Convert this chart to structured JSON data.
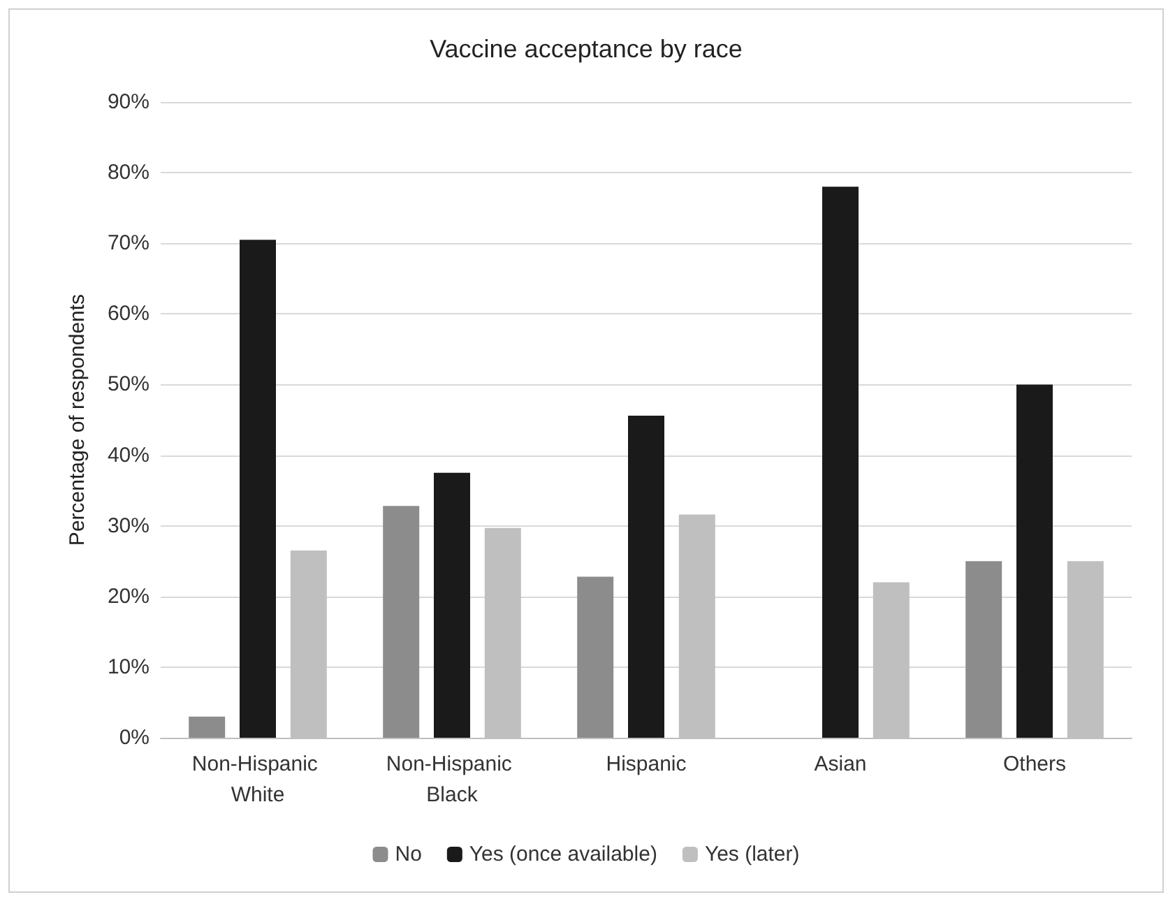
{
  "chart_data": {
    "type": "bar",
    "title": "Vaccine acceptance by race",
    "ylabel": "Percentage of respondents",
    "categories": [
      "Non-Hispanic White",
      "Non-Hispanic Black",
      "Hispanic",
      "Asian",
      "Others"
    ],
    "series": [
      {
        "name": "No",
        "color": "#8c8c8c",
        "values": [
          3,
          32.8,
          22.8,
          0,
          25
        ]
      },
      {
        "name": "Yes (once available)",
        "color": "#1a1a1a",
        "values": [
          70.5,
          37.5,
          45.6,
          78,
          50
        ]
      },
      {
        "name": "Yes (later)",
        "color": "#bfbfbf",
        "values": [
          26.5,
          29.7,
          31.6,
          22,
          25
        ]
      }
    ],
    "ylim": [
      0,
      90
    ],
    "yticks": [
      {
        "value": 0,
        "label": "0%"
      },
      {
        "value": 10,
        "label": "10%"
      },
      {
        "value": 20,
        "label": "20%"
      },
      {
        "value": 30,
        "label": "30%"
      },
      {
        "value": 40,
        "label": "40%"
      },
      {
        "value": 50,
        "label": "50%"
      },
      {
        "value": 60,
        "label": "60%"
      },
      {
        "value": 70,
        "label": "70%"
      },
      {
        "value": 80,
        "label": "80%"
      },
      {
        "value": 90,
        "label": "90%"
      }
    ],
    "grid": "y",
    "legend": "bottom"
  }
}
